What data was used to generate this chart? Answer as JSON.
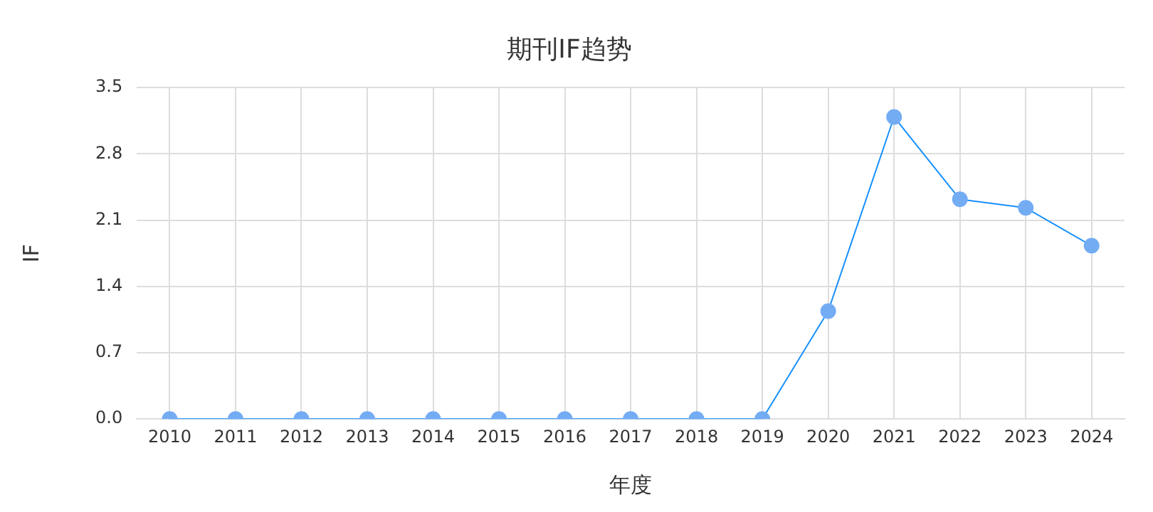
{
  "chart_data": {
    "type": "line",
    "title": "期刊IF趋势",
    "xlabel": "年度",
    "ylabel": "IF",
    "categories": [
      "2010",
      "2011",
      "2012",
      "2013",
      "2014",
      "2015",
      "2016",
      "2017",
      "2018",
      "2019",
      "2020",
      "2021",
      "2022",
      "2023",
      "2024"
    ],
    "series": [
      {
        "color": "#1890ff",
        "values": [
          0,
          0,
          0,
          0,
          0,
          0,
          0,
          0,
          0,
          0,
          1.14,
          3.19,
          2.32,
          2.23,
          1.83
        ]
      }
    ],
    "ylim": [
      0,
      3.5
    ],
    "yticks": [
      {
        "value": 0,
        "label": "0.0"
      },
      {
        "value": 0.7,
        "label": "0.7"
      },
      {
        "value": 1.4,
        "label": "1.4"
      },
      {
        "value": 2.1,
        "label": "2.1"
      },
      {
        "value": 2.8,
        "label": "2.8"
      },
      {
        "value": 3.5,
        "label": "3.5"
      }
    ],
    "grid": true,
    "legend": false,
    "marker": "circle",
    "line_style": "solid"
  }
}
